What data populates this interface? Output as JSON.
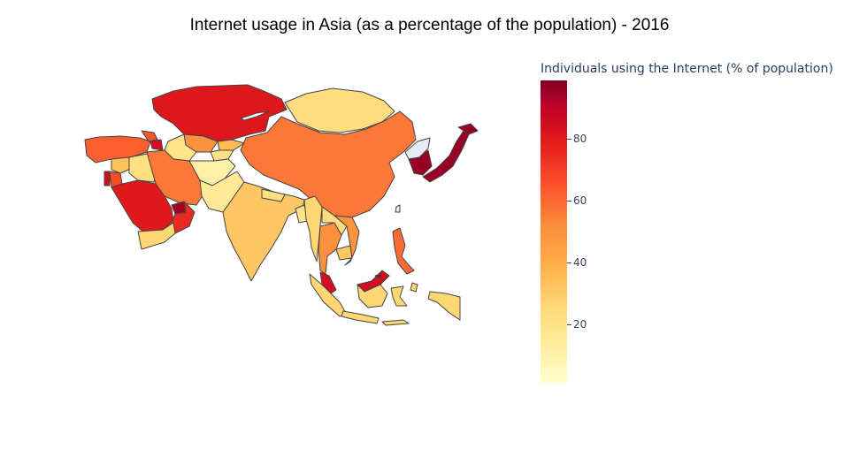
{
  "title": "Internet usage in Asia (as a percentage of the population) - 2016",
  "colorbar": {
    "title": "Individuals using the Internet (% of population)",
    "ticks": [
      "20",
      "40",
      "60",
      "80"
    ],
    "range": [
      0,
      98
    ],
    "colorscale": [
      "#ffffcc",
      "#ffeda0",
      "#fed976",
      "#feb24c",
      "#fd8d3c",
      "#fc4e2a",
      "#e31a1c",
      "#bd0026",
      "#800026"
    ]
  },
  "chart_data": {
    "type": "choropleth",
    "scope": "asia",
    "no_data_color": "#e5ecf6",
    "regions": [
      {
        "name": "Kazakhstan",
        "value": 75
      },
      {
        "name": "Mongolia",
        "value": 22
      },
      {
        "name": "China",
        "value": 53
      },
      {
        "name": "Turkey",
        "value": 58
      },
      {
        "name": "Iran",
        "value": 53
      },
      {
        "name": "Saudi Arabia",
        "value": 74
      },
      {
        "name": "Yemen",
        "value": 25
      },
      {
        "name": "Oman",
        "value": 70
      },
      {
        "name": "UAE",
        "value": 91
      },
      {
        "name": "Afghanistan",
        "value": 10
      },
      {
        "name": "Pakistan",
        "value": 15
      },
      {
        "name": "India",
        "value": 30
      },
      {
        "name": "Nepal",
        "value": 20
      },
      {
        "name": "Bangladesh",
        "value": 18
      },
      {
        "name": "Myanmar",
        "value": 25
      },
      {
        "name": "Thailand",
        "value": 48
      },
      {
        "name": "Vietnam",
        "value": 47
      },
      {
        "name": "Laos",
        "value": 22
      },
      {
        "name": "Cambodia",
        "value": 30
      },
      {
        "name": "Malaysia",
        "value": 79
      },
      {
        "name": "Indonesia",
        "value": 25
      },
      {
        "name": "Philippines",
        "value": 56
      },
      {
        "name": "Japan",
        "value": 93
      },
      {
        "name": "South Korea",
        "value": 93
      },
      {
        "name": "North Korea",
        "value": null
      },
      {
        "name": "Uzbekistan",
        "value": 47
      },
      {
        "name": "Turkmenistan",
        "value": 18
      },
      {
        "name": "Kyrgyzstan",
        "value": 34
      },
      {
        "name": "Tajikistan",
        "value": 20
      },
      {
        "name": "Syria",
        "value": 32
      },
      {
        "name": "Iraq",
        "value": 21
      },
      {
        "name": "Georgia",
        "value": 60
      },
      {
        "name": "Azerbaijan",
        "value": 78
      },
      {
        "name": "Israel",
        "value": 80
      },
      {
        "name": "Jordan",
        "value": 62
      },
      {
        "name": "Brunei",
        "value": 90
      }
    ]
  }
}
